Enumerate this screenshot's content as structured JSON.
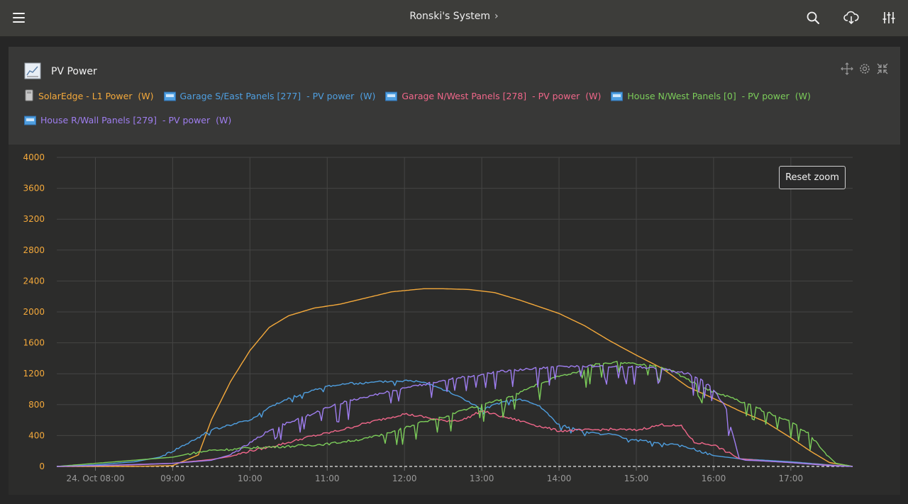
{
  "header": {
    "system_name": "Ronski's System",
    "chevron": "›",
    "icons": [
      "hamburger-menu-icon",
      "search-icon",
      "cloud-download-icon",
      "sliders-icon"
    ]
  },
  "widget": {
    "title": "PV Power",
    "icon": "chart-icon",
    "controls": [
      "move-icon",
      "gear-icon",
      "collapse-icon"
    ],
    "reset_zoom_label": "Reset zoom"
  },
  "legend": [
    {
      "name": "SolarEdge",
      "rest": " - L1 Power  (W)",
      "color": "#f4a93b",
      "icon": "inverter-icon"
    },
    {
      "name": "Garage S/East Panels",
      "rest": " [277]  - PV power  (W)",
      "color": "#4f9fe0",
      "icon": "solar-charger-icon"
    },
    {
      "name": "Garage N/West Panels",
      "rest": " [278]  - PV power  (W)",
      "color": "#f0678a",
      "icon": "solar-charger-icon"
    },
    {
      "name": "House N/West Panels",
      "rest": " [0]  - PV power  (W)",
      "color": "#7ccd5a",
      "icon": "solar-charger-icon"
    },
    {
      "name": "House R/Wall Panels",
      "rest": " [279]  - PV power  (W)",
      "color": "#9f7ef0",
      "icon": "solar-charger-icon"
    }
  ],
  "chart_data": {
    "type": "line",
    "title": "PV Power",
    "xlabel": "",
    "ylabel": "",
    "x_tick_labels": [
      "24. Oct 08:00",
      "09:00",
      "10:00",
      "11:00",
      "12:00",
      "13:00",
      "14:00",
      "15:00",
      "16:00",
      "17:00"
    ],
    "x_tick_hours": [
      8,
      9,
      10,
      11,
      12,
      13,
      14,
      15,
      16,
      17
    ],
    "xlim": [
      "07:30",
      "17:48"
    ],
    "y_ticks": [
      0,
      400,
      800,
      1200,
      1600,
      2000,
      2400,
      2800,
      3200,
      3600,
      4000
    ],
    "ylim": [
      0,
      4000
    ],
    "grid": true,
    "axis_label_color": "#f4a93b",
    "series": [
      {
        "name": "SolarEdge - L1 Power (W)",
        "color": "#f4a93b",
        "x": [
          "07:30",
          "08:30",
          "09:00",
          "09:20",
          "09:30",
          "09:45",
          "10:00",
          "10:15",
          "10:30",
          "10:50",
          "11:10",
          "11:30",
          "11:50",
          "12:15",
          "12:30",
          "12:50",
          "13:10",
          "13:30",
          "14:00",
          "14:20",
          "14:40",
          "15:00",
          "15:20",
          "15:40",
          "16:00",
          "16:20",
          "16:40",
          "17:00",
          "17:15",
          "17:30",
          "17:48"
        ],
        "y": [
          0,
          0,
          10,
          150,
          600,
          1100,
          1500,
          1800,
          1950,
          2050,
          2100,
          2180,
          2260,
          2300,
          2300,
          2290,
          2250,
          2150,
          1980,
          1820,
          1620,
          1440,
          1270,
          1030,
          880,
          720,
          580,
          370,
          200,
          50,
          0
        ]
      },
      {
        "name": "Garage S/East Panels [277] - PV power (W)",
        "color": "#4f9fe0",
        "x": [
          "07:30",
          "08:00",
          "08:30",
          "08:50",
          "09:00",
          "09:15",
          "09:30",
          "09:45",
          "10:00",
          "10:15",
          "10:30",
          "10:45",
          "11:00",
          "11:15",
          "11:30",
          "11:45",
          "12:00",
          "12:15",
          "12:30",
          "12:50",
          "13:00",
          "13:15",
          "13:30",
          "13:45",
          "14:00",
          "14:20",
          "14:40",
          "15:00",
          "15:20",
          "15:40",
          "16:00",
          "16:20",
          "16:40",
          "17:00",
          "17:30",
          "17:48"
        ],
        "y": [
          0,
          20,
          60,
          120,
          200,
          330,
          470,
          540,
          600,
          760,
          880,
          960,
          1040,
          1070,
          1080,
          1100,
          1110,
          1100,
          1000,
          840,
          730,
          830,
          870,
          780,
          540,
          450,
          410,
          340,
          300,
          250,
          140,
          100,
          80,
          60,
          20,
          0
        ]
      },
      {
        "name": "Garage N/West Panels [278] - PV power (W)",
        "color": "#f0678a",
        "x": [
          "07:30",
          "08:30",
          "09:00",
          "09:30",
          "09:45",
          "10:00",
          "10:15",
          "10:30",
          "10:45",
          "11:00",
          "11:15",
          "11:30",
          "11:45",
          "12:00",
          "12:15",
          "12:30",
          "12:45",
          "13:00",
          "13:15",
          "13:30",
          "13:45",
          "14:00",
          "14:20",
          "14:40",
          "15:00",
          "15:20",
          "15:35",
          "15:45",
          "16:00",
          "16:20",
          "16:40",
          "17:00",
          "17:30",
          "17:48"
        ],
        "y": [
          0,
          20,
          40,
          90,
          130,
          200,
          250,
          310,
          380,
          430,
          490,
          560,
          620,
          680,
          640,
          590,
          600,
          720,
          650,
          590,
          520,
          460,
          470,
          480,
          470,
          540,
          520,
          310,
          280,
          100,
          70,
          50,
          15,
          0
        ]
      },
      {
        "name": "House N/West Panels [0] - PV power (W)",
        "color": "#7ccd5a",
        "x": [
          "07:30",
          "08:00",
          "08:30",
          "09:00",
          "09:15",
          "09:30",
          "09:45",
          "10:00",
          "10:30",
          "11:00",
          "11:30",
          "11:45",
          "12:00",
          "12:15",
          "12:30",
          "12:45",
          "13:00",
          "13:15",
          "13:30",
          "13:45",
          "14:00",
          "14:15",
          "14:30",
          "14:45",
          "15:00",
          "15:15",
          "15:30",
          "15:45",
          "16:00",
          "16:15",
          "16:30",
          "16:45",
          "17:00",
          "17:15",
          "17:25",
          "17:35",
          "17:48"
        ],
        "y": [
          0,
          40,
          80,
          120,
          170,
          210,
          220,
          240,
          260,
          290,
          360,
          420,
          500,
          580,
          640,
          720,
          800,
          870,
          960,
          1070,
          1170,
          1230,
          1330,
          1350,
          1320,
          1300,
          1220,
          1080,
          960,
          880,
          780,
          680,
          580,
          410,
          200,
          40,
          0
        ]
      },
      {
        "name": "House R/Wall Panels [279] - PV power (W)",
        "color": "#9f7ef0",
        "x": [
          "07:30",
          "08:00",
          "08:30",
          "09:00",
          "09:30",
          "09:45",
          "10:00",
          "10:15",
          "10:30",
          "10:45",
          "11:00",
          "11:15",
          "11:30",
          "11:45",
          "12:00",
          "12:15",
          "12:30",
          "12:45",
          "13:00",
          "13:15",
          "13:30",
          "13:45",
          "14:00",
          "14:20",
          "14:40",
          "15:00",
          "15:20",
          "15:40",
          "15:50",
          "16:00",
          "16:10",
          "16:15",
          "16:20",
          "16:25",
          "16:40",
          "17:00",
          "17:30",
          "17:48"
        ],
        "y": [
          0,
          10,
          25,
          40,
          80,
          150,
          300,
          470,
          570,
          660,
          760,
          840,
          900,
          960,
          1010,
          1060,
          1120,
          1160,
          1190,
          1230,
          1250,
          1270,
          1290,
          1300,
          1300,
          1290,
          1260,
          1200,
          1120,
          1000,
          750,
          400,
          100,
          80,
          70,
          50,
          10,
          0
        ]
      }
    ]
  }
}
